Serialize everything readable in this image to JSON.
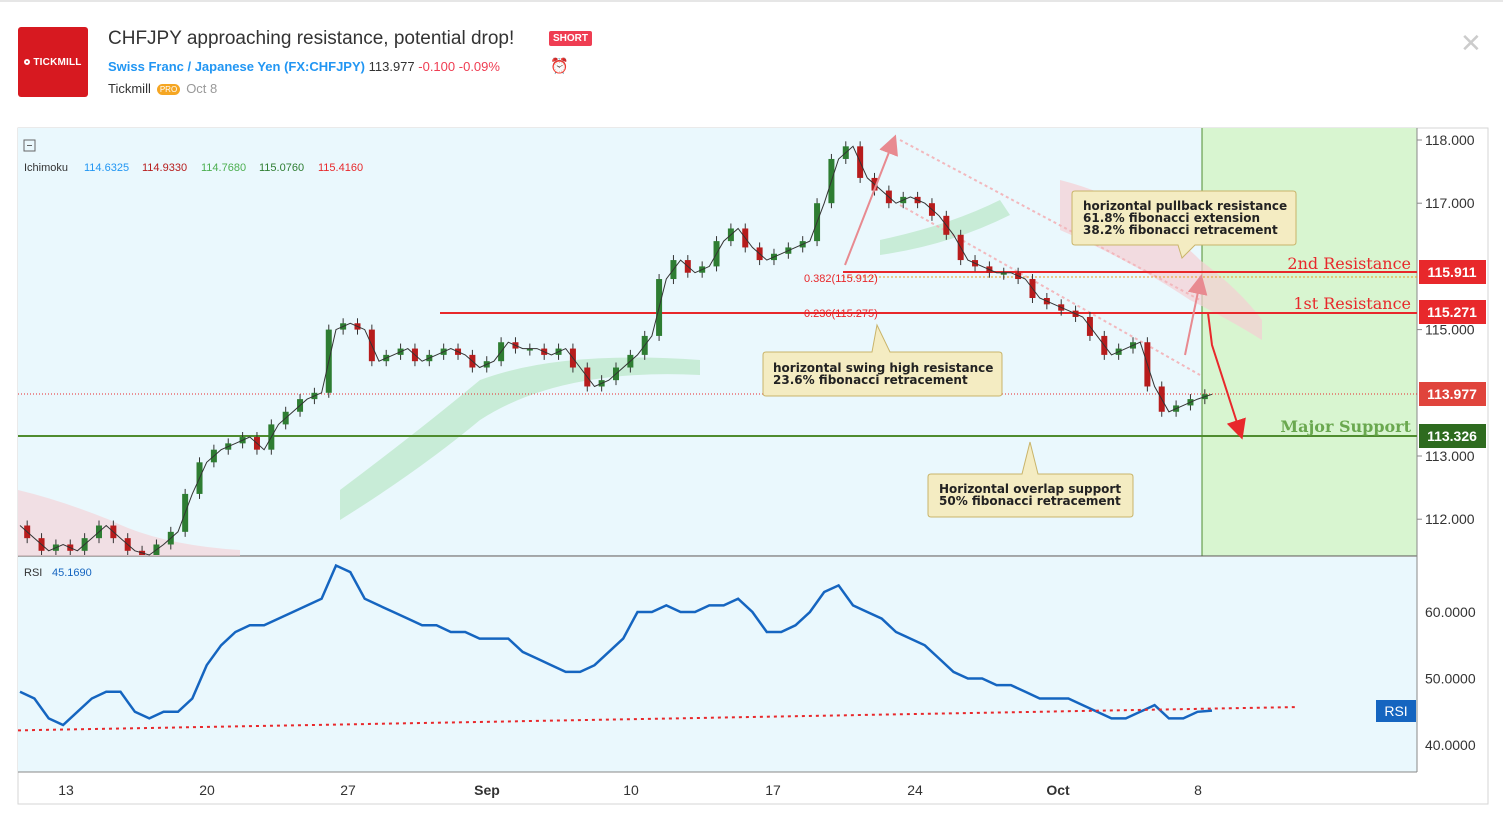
{
  "header": {
    "logo_text": "TICKMILL",
    "title": "CHFJPY approaching resistance, potential drop!",
    "badge": "SHORT",
    "symbol_name": "Swiss Franc / Japanese Yen",
    "symbol_code": "(FX:CHFJPY)",
    "price": "113.977",
    "change": "-0.100",
    "change_pct": "-0.09%",
    "author": "Tickmill",
    "author_badge": "PRO",
    "date": "Oct 8",
    "close_icon": "close-icon",
    "alarm_icon": "alarm-clock-icon"
  },
  "colors": {
    "resistance": "#e8282b",
    "support": "#4f8c2f",
    "support_text": "#6aa84f",
    "rsi_line": "#1565c0",
    "candle_up": "#2e7d32",
    "candle_down": "#b71c1c",
    "callout_bg": "#f4ecc2",
    "callout_border": "#c9b46a",
    "projection_zone": "#d8f5d0"
  },
  "indicators": {
    "ichimoku_label": "Ichimoku",
    "ichimoku_values": [
      "114.6325",
      "114.9330",
      "114.7680",
      "115.0760",
      "115.4160"
    ],
    "ichimoku_colors": [
      "#2196f3",
      "#b71c1c",
      "#4caf50",
      "#2e7d32",
      "#e8282b"
    ],
    "rsi_label": "RSI",
    "rsi_value": "45.1690",
    "rsi_tag": "RSI"
  },
  "annotations": {
    "res2_label": "2nd Resistance",
    "res2_price": "115.911",
    "res1_label": "1st Resistance",
    "res1_price": "115.271",
    "current_price": "113.977",
    "support_label": "Major Support",
    "support_price": "113.326",
    "fib_382": "0.382(115.912)",
    "fib_236": "0.236(115.275)",
    "callout_top": [
      "horizontal pullback resistance",
      "61.8% fibonacci extension",
      "38.2% fibonacci retracement"
    ],
    "callout_mid": [
      "horizontal swing high resistance",
      "23.6% fibonacci retracement"
    ],
    "callout_bottom": [
      "Horizontal overlap support",
      "50% fibonacci retracement"
    ]
  },
  "chart_data": {
    "type": "line",
    "price_axis": {
      "ticks": [
        "118.000",
        "117.000",
        "115.000",
        "113.000",
        "112.000"
      ],
      "ylim": [
        111.4,
        118.2
      ]
    },
    "rsi_axis": {
      "ticks": [
        "60.0000",
        "50.0000",
        "40.0000"
      ],
      "ylim": [
        37,
        67
      ]
    },
    "x_ticks": [
      "13",
      "20",
      "27",
      "Sep",
      "10",
      "17",
      "24",
      "Oct",
      "8"
    ],
    "price_series": {
      "name": "CHFJPY",
      "values": [
        111.9,
        111.7,
        111.5,
        111.6,
        111.5,
        111.7,
        111.9,
        111.7,
        111.5,
        111.4,
        111.6,
        111.8,
        112.4,
        112.9,
        113.1,
        113.2,
        113.3,
        113.1,
        113.5,
        113.7,
        113.9,
        114.0,
        115.0,
        115.1,
        115.0,
        114.5,
        114.6,
        114.7,
        114.5,
        114.6,
        114.7,
        114.6,
        114.4,
        114.5,
        114.8,
        114.7,
        114.7,
        114.6,
        114.7,
        114.4,
        114.1,
        114.2,
        114.4,
        114.6,
        114.9,
        115.8,
        116.1,
        115.9,
        116.0,
        116.4,
        116.6,
        116.3,
        116.1,
        116.2,
        116.3,
        116.4,
        117.0,
        117.7,
        117.9,
        117.4,
        117.2,
        117.0,
        117.1,
        117.0,
        116.8,
        116.5,
        116.1,
        116.0,
        115.9,
        115.9,
        115.8,
        115.5,
        115.4,
        115.3,
        115.2,
        114.9,
        114.6,
        114.7,
        114.8,
        114.1,
        113.7,
        113.8,
        113.9,
        113.977
      ],
      "marker_left": 18
    },
    "rsi_series": {
      "name": "RSI",
      "values": [
        48,
        47,
        44,
        43,
        45,
        47,
        48,
        48,
        45,
        44,
        45,
        45,
        47,
        52,
        55,
        57,
        58,
        58,
        59,
        60,
        61,
        62,
        67,
        66,
        62,
        61,
        60,
        59,
        58,
        58,
        57,
        57,
        56,
        56,
        56,
        54,
        53,
        52,
        51,
        51,
        52,
        54,
        56,
        60,
        60,
        61,
        60,
        60,
        61,
        61,
        62,
        60,
        57,
        57,
        58,
        60,
        63,
        64,
        61,
        60,
        59,
        57,
        56,
        55,
        53,
        51,
        50,
        50,
        49,
        49,
        48,
        47,
        47,
        47,
        46,
        45,
        44,
        44,
        45,
        46,
        44,
        44,
        45,
        45.169
      ],
      "trendline": [
        [
          18,
          42.2
        ],
        [
          1295,
          45.7
        ]
      ]
    },
    "levels": {
      "resistance_2": 115.911,
      "resistance_1": 115.271,
      "support": 113.326,
      "current": 113.977
    },
    "grid": false,
    "legend": "top-left"
  }
}
